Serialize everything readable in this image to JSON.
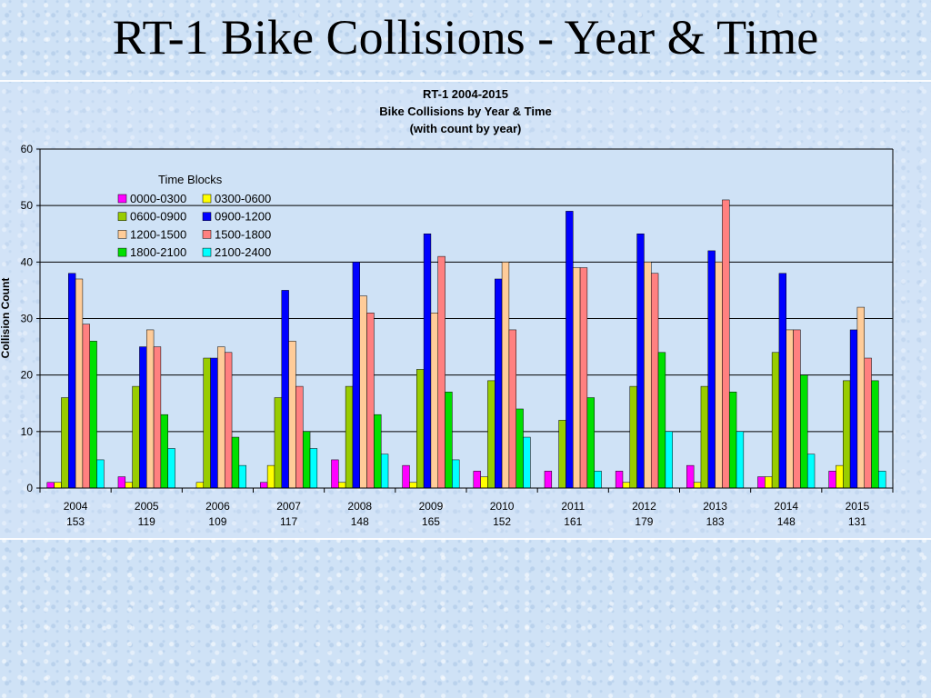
{
  "slide": {
    "title": "RT-1 Bike Collisions - Year & Time"
  },
  "colors": {
    "0000-0300": "#ff00ff",
    "0300-0600": "#ffff00",
    "0600-0900": "#99cc00",
    "0900-1200": "#0000ff",
    "1200-1500": "#ffcc99",
    "1500-1800": "#ff8080",
    "1800-2100": "#00e000",
    "2100-2400": "#00ffff"
  },
  "chart_data": {
    "type": "bar",
    "title": [
      "RT-1 2004-2015",
      "Bike Collisions by Year & Time",
      "(with count by year)"
    ],
    "ylabel": "Collision Count",
    "xlabel": "",
    "ylim": [
      0,
      60
    ],
    "yticks": [
      "0",
      "10",
      "20",
      "30",
      "40",
      "50",
      "60"
    ],
    "grid": true,
    "legend": {
      "title": "Time Blocks",
      "placement": "top-left"
    },
    "categories": [
      "2004",
      "2005",
      "2006",
      "2007",
      "2008",
      "2009",
      "2010",
      "2011",
      "2012",
      "2013",
      "2014",
      "2015"
    ],
    "category_counts": [
      "153",
      "119",
      "109",
      "117",
      "148",
      "165",
      "152",
      "161",
      "179",
      "183",
      "148",
      "131"
    ],
    "series": [
      {
        "name": "0000-0300",
        "values": [
          1,
          2,
          0,
          1,
          5,
          4,
          3,
          3,
          3,
          4,
          2,
          3
        ]
      },
      {
        "name": "0300-0600",
        "values": [
          1,
          1,
          1,
          4,
          1,
          1,
          2,
          0,
          1,
          1,
          2,
          4
        ]
      },
      {
        "name": "0600-0900",
        "values": [
          16,
          18,
          23,
          16,
          18,
          21,
          19,
          12,
          18,
          18,
          24,
          19
        ]
      },
      {
        "name": "0900-1200",
        "values": [
          38,
          25,
          23,
          35,
          40,
          45,
          37,
          49,
          45,
          42,
          38,
          28
        ]
      },
      {
        "name": "1200-1500",
        "values": [
          37,
          28,
          25,
          26,
          34,
          31,
          40,
          39,
          40,
          40,
          28,
          32
        ]
      },
      {
        "name": "1500-1800",
        "values": [
          29,
          25,
          24,
          18,
          31,
          41,
          28,
          39,
          38,
          51,
          28,
          23
        ]
      },
      {
        "name": "1800-2100",
        "values": [
          26,
          13,
          9,
          10,
          13,
          17,
          14,
          16,
          24,
          17,
          20,
          19
        ]
      },
      {
        "name": "2100-2400",
        "values": [
          5,
          7,
          4,
          7,
          6,
          5,
          9,
          3,
          10,
          10,
          6,
          3
        ]
      }
    ]
  }
}
